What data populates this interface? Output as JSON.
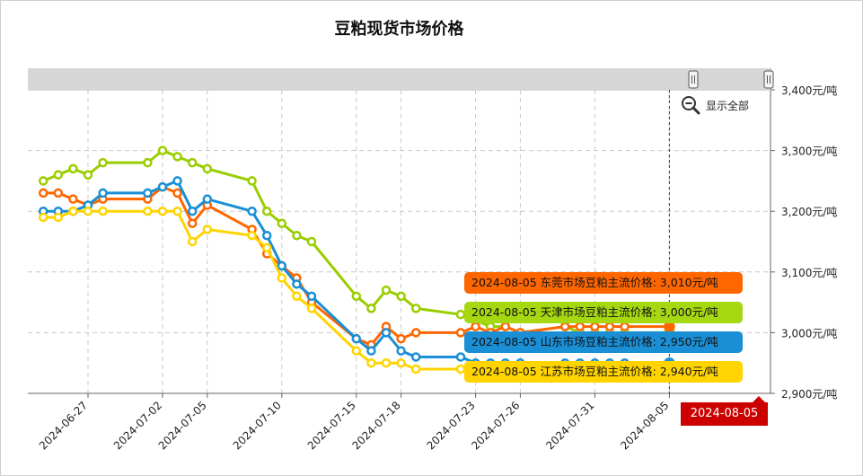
{
  "chart_data": {
    "type": "line",
    "title": "豆粕现货市场价格",
    "x_tick_labels": [
      "2024-06-27",
      "2024-07-02",
      "2024-07-05",
      "2024-07-10",
      "2024-07-15",
      "2024-07-18",
      "2024-07-23",
      "2024-07-26",
      "2024-07-31",
      "2024-08-05"
    ],
    "y_tick_labels": [
      "3,400元/吨",
      "3,300元/吨",
      "3,200元/吨",
      "3,100元/吨",
      "3,000元/吨",
      "2,900元/吨"
    ],
    "ylim": [
      2900,
      3400
    ],
    "grid": true,
    "x": [
      "2024-06-24",
      "2024-06-25",
      "2024-06-26",
      "2024-06-27",
      "2024-06-28",
      "2024-07-01",
      "2024-07-02",
      "2024-07-03",
      "2024-07-04",
      "2024-07-05",
      "2024-07-08",
      "2024-07-09",
      "2024-07-10",
      "2024-07-11",
      "2024-07-12",
      "2024-07-15",
      "2024-07-16",
      "2024-07-17",
      "2024-07-18",
      "2024-07-19",
      "2024-07-22",
      "2024-07-23",
      "2024-07-24",
      "2024-07-25",
      "2024-07-26",
      "2024-07-29",
      "2024-07-30",
      "2024-07-31",
      "2024-08-01",
      "2024-08-02",
      "2024-08-05"
    ],
    "series": [
      {
        "name": "天津市场豆粕主流价格",
        "color": "#9acd00",
        "values": [
          3250,
          3260,
          3270,
          3260,
          3280,
          3280,
          3300,
          3290,
          3280,
          3270,
          3250,
          3200,
          3180,
          3160,
          3150,
          3060,
          3040,
          3070,
          3060,
          3040,
          3030,
          3020,
          3010,
          3010,
          3000,
          3010,
          3000,
          3000,
          3000,
          3000,
          3000
        ]
      },
      {
        "name": "东莞市场豆粕主流价格",
        "color": "#ff6600",
        "values": [
          3230,
          3230,
          3220,
          3210,
          3220,
          3220,
          3240,
          3230,
          3180,
          3210,
          3170,
          3130,
          3110,
          3090,
          3050,
          2990,
          2980,
          3010,
          2990,
          3000,
          3000,
          3010,
          3000,
          3010,
          3000,
          3010,
          3010,
          3010,
          3010,
          3010,
          3010
        ]
      },
      {
        "name": "山东市场豆粕主流价格",
        "color": "#1a8fd6",
        "values": [
          3200,
          3200,
          3200,
          3210,
          3230,
          3230,
          3240,
          3250,
          3200,
          3220,
          3200,
          3160,
          3110,
          3080,
          3060,
          2990,
          2970,
          3000,
          2970,
          2960,
          2960,
          2950,
          2950,
          2950,
          2950,
          2950,
          2950,
          2950,
          2950,
          2950,
          2950
        ]
      },
      {
        "name": "江苏市场豆粕主流价格",
        "color": "#ffd400",
        "values": [
          3190,
          3190,
          3200,
          3200,
          3200,
          3200,
          3200,
          3200,
          3150,
          3170,
          3160,
          3140,
          3090,
          3060,
          3040,
          2970,
          2950,
          2950,
          2950,
          2940,
          2940,
          2940,
          2940,
          2940,
          2940,
          2940,
          2940,
          2940,
          2940,
          2940,
          2940
        ]
      }
    ]
  },
  "controls": {
    "show_all": "显示全部",
    "zoom_icon": "magnifier-minus-icon",
    "handle_icon": "drag-handle-icon"
  },
  "tooltip": {
    "date": "2024-08-05",
    "items": [
      {
        "text": "2024-08-05 东莞市场豆粕主流价格: 3,010元/吨",
        "color": "#ff6600"
      },
      {
        "text": "2024-08-05 天津市场豆粕主流价格: 3,000元/吨",
        "color": "#a6d811"
      },
      {
        "text": "2024-08-05 山东市场豆粕主流价格: 2,950元/吨",
        "color": "#1a8fd6"
      },
      {
        "text": "2024-08-05 江苏市场豆粕主流价格: 2,940元/吨",
        "color": "#ffd400"
      }
    ]
  }
}
